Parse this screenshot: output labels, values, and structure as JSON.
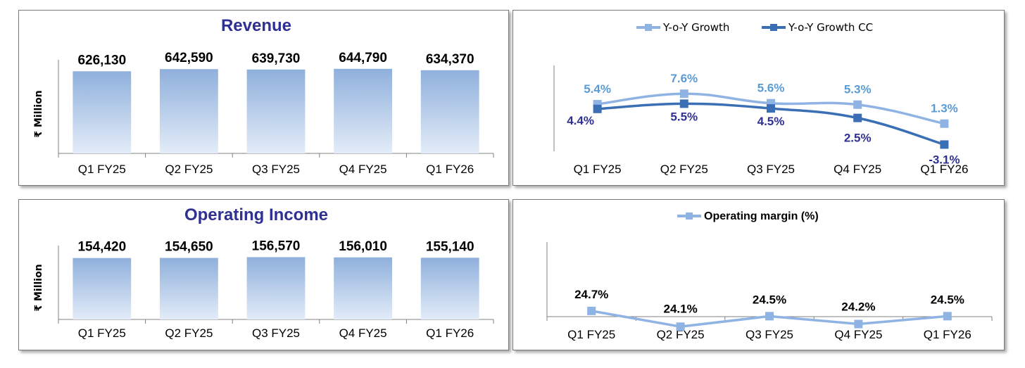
{
  "colors": {
    "title": "#2e3192",
    "bar_top": "#8fb0dc",
    "bar_bottom": "#e3ecf8",
    "series_light": "#8fb4e3",
    "series_dark": "#3a6fb5",
    "label_light": "#5b9bd5",
    "label_dark": "#2e3192",
    "axis": "#808080"
  },
  "chart_data": [
    {
      "id": "revenue",
      "type": "bar",
      "title": "Revenue",
      "ylabel": "₹ Million",
      "categories": [
        "Q1 FY25",
        "Q2 FY25",
        "Q3 FY25",
        "Q4 FY25",
        "Q1 FY26"
      ],
      "values": [
        626130,
        642590,
        639730,
        644790,
        634370
      ],
      "labels": [
        "626,130",
        "642,590",
        "639,730",
        "644,790",
        "634,370"
      ],
      "ylim": [
        0,
        660000
      ],
      "grid": false,
      "legend": "none"
    },
    {
      "id": "growth",
      "type": "line",
      "title": "",
      "ylabel": "",
      "categories": [
        "Q1 FY25",
        "Q2 FY25",
        "Q3 FY25",
        "Q4 FY25",
        "Q1 FY26"
      ],
      "series": [
        {
          "name": "Y-o-Y Growth",
          "values": [
            5.4,
            7.6,
            5.6,
            5.3,
            1.3
          ],
          "labels": [
            "5.4%",
            "7.6%",
            "5.6%",
            "5.3%",
            "1.3%"
          ]
        },
        {
          "name": "Y-o-Y Growth CC",
          "values": [
            4.4,
            5.5,
            4.5,
            2.5,
            -3.1
          ],
          "labels": [
            "4.4%",
            "5.5%",
            "4.5%",
            "2.5%",
            "-3.1%"
          ]
        }
      ],
      "ylim": [
        -6,
        18
      ],
      "grid": false,
      "legend": "top-center"
    },
    {
      "id": "opinc",
      "type": "bar",
      "title": "Operating Income",
      "ylabel": "₹ Million",
      "categories": [
        "Q1 FY25",
        "Q2 FY25",
        "Q3 FY25",
        "Q4 FY25",
        "Q1 FY26"
      ],
      "values": [
        154420,
        154650,
        156570,
        156010,
        155140
      ],
      "labels": [
        "154,420",
        "154,650",
        "156,570",
        "156,010",
        "155,140"
      ],
      "ylim": [
        0,
        168000
      ],
      "grid": false,
      "legend": "none"
    },
    {
      "id": "margin",
      "type": "line",
      "title": "",
      "ylabel": "",
      "categories": [
        "Q1 FY25",
        "Q2 FY25",
        "Q3 FY25",
        "Q4 FY25",
        "Q1 FY26"
      ],
      "series": [
        {
          "name": "Operating margin (%)",
          "values": [
            24.7,
            24.1,
            24.5,
            24.2,
            24.5
          ],
          "labels": [
            "24.7%",
            "24.1%",
            "24.5%",
            "24.2%",
            "24.5%"
          ]
        }
      ],
      "ylim": [
        15,
        30
      ],
      "grid": false,
      "legend": "top-center"
    }
  ]
}
